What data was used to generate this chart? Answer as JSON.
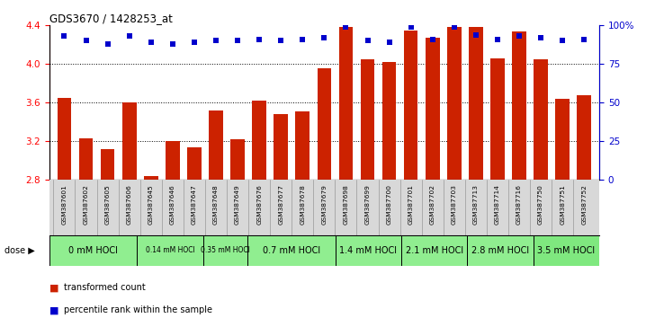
{
  "title": "GDS3670 / 1428253_at",
  "samples": [
    "GSM387601",
    "GSM387602",
    "GSM387605",
    "GSM387606",
    "GSM387645",
    "GSM387646",
    "GSM387647",
    "GSM387648",
    "GSM387649",
    "GSM387676",
    "GSM387677",
    "GSM387678",
    "GSM387679",
    "GSM387698",
    "GSM387699",
    "GSM387700",
    "GSM387701",
    "GSM387702",
    "GSM387703",
    "GSM387713",
    "GSM387714",
    "GSM387716",
    "GSM387750",
    "GSM387751",
    "GSM387752"
  ],
  "bar_values": [
    3.65,
    3.23,
    3.12,
    3.6,
    2.84,
    3.2,
    3.14,
    3.52,
    3.22,
    3.62,
    3.48,
    3.51,
    3.96,
    4.38,
    4.05,
    4.02,
    4.35,
    4.27,
    4.38,
    4.38,
    4.06,
    4.34,
    4.05,
    3.64,
    3.68
  ],
  "percentile_values": [
    93,
    90,
    88,
    93,
    89,
    88,
    89,
    90,
    90,
    91,
    90,
    91,
    92,
    99,
    90,
    89,
    99,
    91,
    99,
    94,
    91,
    93,
    92,
    90,
    91
  ],
  "dose_groups": [
    {
      "label": "0 mM HOCl",
      "count": 4,
      "color": "#90EE90",
      "small": false
    },
    {
      "label": "0.14 mM HOCl",
      "count": 3,
      "color": "#90EE90",
      "small": true
    },
    {
      "label": "0.35 mM HOCl",
      "count": 2,
      "color": "#90EE90",
      "small": true
    },
    {
      "label": "0.7 mM HOCl",
      "count": 4,
      "color": "#90EE90",
      "small": false
    },
    {
      "label": "1.4 mM HOCl",
      "count": 3,
      "color": "#90EE90",
      "small": false
    },
    {
      "label": "2.1 mM HOCl",
      "count": 3,
      "color": "#90EE90",
      "small": false
    },
    {
      "label": "2.8 mM HOCl",
      "count": 3,
      "color": "#90EE90",
      "small": false
    },
    {
      "label": "3.5 mM HOCl",
      "count": 3,
      "color": "#7FE87F",
      "small": false
    }
  ],
  "bar_color": "#CC2200",
  "percentile_color": "#0000CC",
  "ylim_left": [
    2.8,
    4.4
  ],
  "ylim_right": [
    0,
    100
  ],
  "yticks_left": [
    2.8,
    3.2,
    3.6,
    4.0,
    4.4
  ],
  "yticks_right": [
    0,
    25,
    50,
    75,
    100
  ],
  "ytick_labels_right": [
    "0",
    "25",
    "50",
    "75",
    "100%"
  ],
  "bar_bottom": 2.8,
  "grid_dotted_at": [
    3.2,
    3.6,
    4.0
  ]
}
